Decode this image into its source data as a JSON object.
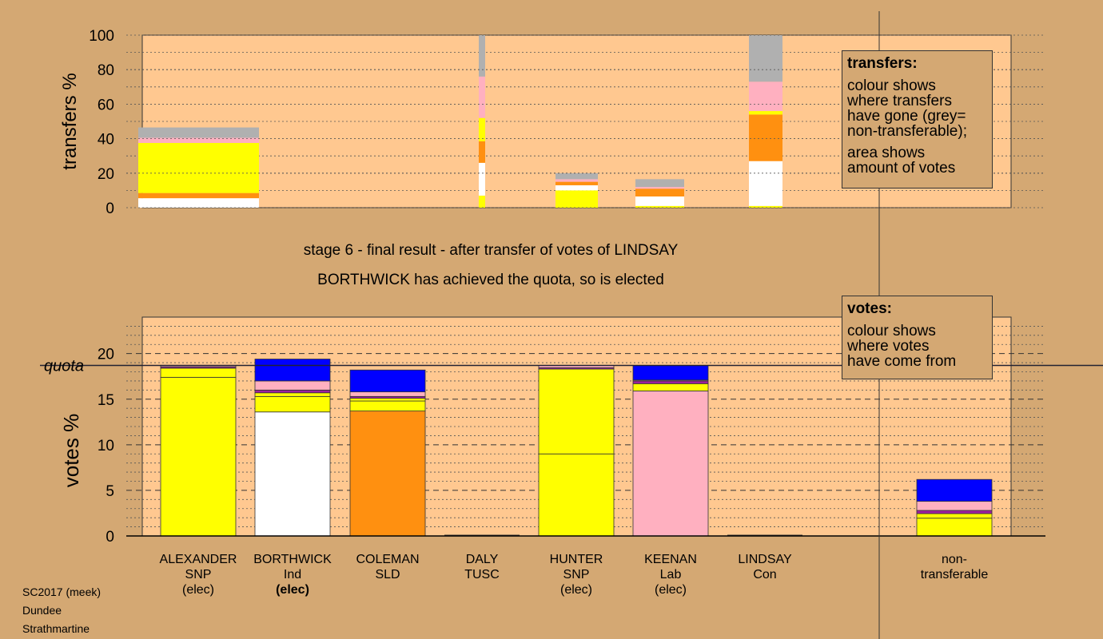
{
  "page": {
    "stage_line1": "stage 6 - final result - after transfer of votes of LINDSAY",
    "stage_line2": "BORTHWICK has achieved the quota, so is elected",
    "footer": [
      "SC2017 (meek)",
      "Dundee",
      "Strathmartine"
    ]
  },
  "legend_transfers": {
    "title": "transfers:",
    "lines": [
      "colour shows",
      "where transfers",
      "have gone (grey=",
      "non-transferable);"
    ],
    "lines2": [
      "area shows",
      "amount of votes"
    ]
  },
  "legend_votes": {
    "title": "votes:",
    "lines": [
      "colour shows",
      "where votes",
      "have come from"
    ]
  },
  "colors": {
    "SNP": "#ffff00",
    "Ind": "#ffffff",
    "SLD": "#ff9010",
    "TUSC": "#ffffff",
    "Lab": "#ffb0c0",
    "Con": "#0000ff",
    "nontransferable": "#b0b0b0",
    "purple": "#a020a0",
    "plot_bg": "#ffc890",
    "page_bg": "#d4a873"
  },
  "chart_data": [
    {
      "type": "bar",
      "stacked": true,
      "ylabel": "transfers %",
      "ylim": [
        0,
        100
      ],
      "yticks": [
        0,
        20,
        40,
        60,
        80,
        100
      ],
      "grid": true,
      "bars": [
        {
          "name": "ALEXANDER",
          "segments": [
            {
              "color": "#ffffff",
              "from": 0,
              "to": 5.5
            },
            {
              "color": "#ff9010",
              "from": 5.5,
              "to": 8.5
            },
            {
              "color": "#ffff00",
              "from": 8.5,
              "to": 37.5
            },
            {
              "color": "#ffb0c0",
              "from": 37.5,
              "to": 40.5
            },
            {
              "color": "#b0b0b0",
              "from": 40.5,
              "to": 46.5
            }
          ]
        },
        {
          "name": "DALY",
          "segments": [
            {
              "color": "#ffff00",
              "from": 0,
              "to": 7
            },
            {
              "color": "#ffffff",
              "from": 7,
              "to": 26
            },
            {
              "color": "#ff9010",
              "from": 26,
              "to": 38.5
            },
            {
              "color": "#ffff00",
              "from": 38.5,
              "to": 52
            },
            {
              "color": "#ffb0c0",
              "from": 52,
              "to": 76
            },
            {
              "color": "#b0b0b0",
              "from": 76,
              "to": 100
            }
          ]
        },
        {
          "name": "HUNTER",
          "segments": [
            {
              "color": "#ffff00",
              "from": 0,
              "to": 10
            },
            {
              "color": "#ffffff",
              "from": 10,
              "to": 13
            },
            {
              "color": "#ff9010",
              "from": 13,
              "to": 15
            },
            {
              "color": "#ffb0c0",
              "from": 15,
              "to": 16.5
            },
            {
              "color": "#b0b0b0",
              "from": 16.5,
              "to": 20
            }
          ]
        },
        {
          "name": "KEENAN",
          "segments": [
            {
              "color": "#ffff00",
              "from": 0,
              "to": 1
            },
            {
              "color": "#ffffff",
              "from": 1,
              "to": 6.5
            },
            {
              "color": "#ff9010",
              "from": 6.5,
              "to": 11
            },
            {
              "color": "#ffb0c0",
              "from": 11,
              "to": 12
            },
            {
              "color": "#b0b0b0",
              "from": 12,
              "to": 16.5
            }
          ]
        },
        {
          "name": "LINDSAY",
          "segments": [
            {
              "color": "#ffff00",
              "from": 0,
              "to": 1
            },
            {
              "color": "#ffffff",
              "from": 1,
              "to": 27
            },
            {
              "color": "#ff9010",
              "from": 27,
              "to": 54
            },
            {
              "color": "#ffff00",
              "from": 54,
              "to": 56
            },
            {
              "color": "#ffb0c0",
              "from": 56,
              "to": 73
            },
            {
              "color": "#b0b0b0",
              "from": 73,
              "to": 100
            }
          ]
        }
      ]
    },
    {
      "type": "bar",
      "stacked": true,
      "ylabel": "votes %",
      "ylim": [
        0,
        24
      ],
      "yticks": [
        0,
        5,
        10,
        15,
        20
      ],
      "quota": 18.7,
      "quota_label": "quota",
      "grid": true,
      "categories": [
        {
          "name": "ALEXANDER",
          "party": "SNP",
          "status": "(elec)",
          "bold_status": false
        },
        {
          "name": "BORTHWICK",
          "party": "Ind",
          "status": "(elec)",
          "bold_status": true
        },
        {
          "name": "COLEMAN",
          "party": "SLD",
          "status": "",
          "bold_status": false
        },
        {
          "name": "DALY",
          "party": "TUSC",
          "status": "",
          "bold_status": false
        },
        {
          "name": "HUNTER",
          "party": "SNP",
          "status": "(elec)",
          "bold_status": false
        },
        {
          "name": "KEENAN",
          "party": "Lab",
          "status": "(elec)",
          "bold_status": false
        },
        {
          "name": "LINDSAY",
          "party": "Con",
          "status": "",
          "bold_status": false
        }
      ],
      "nontransferable_label": [
        "non-",
        "transferable"
      ],
      "bars": [
        {
          "name": "ALEXANDER",
          "segments": [
            {
              "color": "#ffff00",
              "from": 0,
              "to": 17.4
            },
            {
              "color": "#ffff00",
              "from": 17.4,
              "to": 18.4
            },
            {
              "color": "#a020a0",
              "from": 18.4,
              "to": 18.55
            },
            {
              "color": "#ffb0c0",
              "from": 18.55,
              "to": 18.7
            }
          ]
        },
        {
          "name": "BORTHWICK",
          "segments": [
            {
              "color": "#ffffff",
              "from": 0,
              "to": 13.6
            },
            {
              "color": "#ffff00",
              "from": 13.6,
              "to": 15.3
            },
            {
              "color": "#ffff00",
              "from": 15.3,
              "to": 15.7
            },
            {
              "color": "#a020a0",
              "from": 15.7,
              "to": 16.0
            },
            {
              "color": "#ffb0c0",
              "from": 16.0,
              "to": 17.0
            },
            {
              "color": "#0000ff",
              "from": 17.0,
              "to": 19.4
            }
          ]
        },
        {
          "name": "COLEMAN",
          "segments": [
            {
              "color": "#ff9010",
              "from": 0,
              "to": 13.7
            },
            {
              "color": "#ffff00",
              "from": 13.7,
              "to": 14.8
            },
            {
              "color": "#ffff00",
              "from": 14.8,
              "to": 15.1
            },
            {
              "color": "#a020a0",
              "from": 15.1,
              "to": 15.3
            },
            {
              "color": "#ffb0c0",
              "from": 15.3,
              "to": 15.8
            },
            {
              "color": "#0000ff",
              "from": 15.8,
              "to": 18.2
            }
          ]
        },
        {
          "name": "DALY",
          "segments": []
        },
        {
          "name": "HUNTER",
          "segments": [
            {
              "color": "#ffff00",
              "from": 0,
              "to": 9.0
            },
            {
              "color": "#ffff00",
              "from": 9.0,
              "to": 18.3
            },
            {
              "color": "#a020a0",
              "from": 18.3,
              "to": 18.45
            },
            {
              "color": "#ffb0c0",
              "from": 18.45,
              "to": 18.7
            }
          ]
        },
        {
          "name": "KEENAN",
          "segments": [
            {
              "color": "#ffb0c0",
              "from": 0,
              "to": 15.9
            },
            {
              "color": "#ffff00",
              "from": 15.9,
              "to": 16.7
            },
            {
              "color": "#a020a0",
              "from": 16.7,
              "to": 17.0
            },
            {
              "color": "#ffb0c0",
              "from": 17.0,
              "to": 17.1
            },
            {
              "color": "#0000ff",
              "from": 17.1,
              "to": 18.7
            }
          ]
        },
        {
          "name": "LINDSAY",
          "segments": []
        },
        {
          "name": "non-transferable",
          "segments": [
            {
              "color": "#ffff00",
              "from": 0,
              "to": 1.95
            },
            {
              "color": "#ffff00",
              "from": 1.95,
              "to": 2.45
            },
            {
              "color": "#a020a0",
              "from": 2.45,
              "to": 2.8
            },
            {
              "color": "#ffb0c0",
              "from": 2.8,
              "to": 3.8
            },
            {
              "color": "#0000ff",
              "from": 3.8,
              "to": 6.2
            }
          ]
        }
      ]
    }
  ]
}
